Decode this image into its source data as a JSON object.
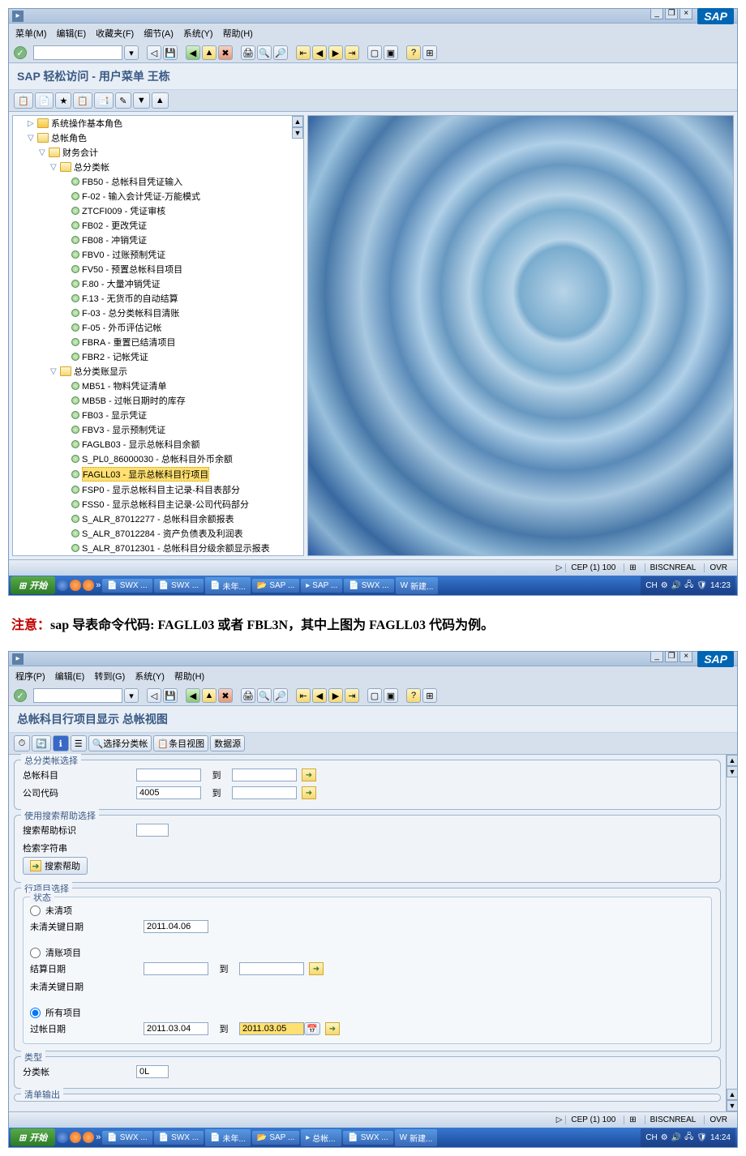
{
  "screenshot1": {
    "menu": {
      "m1": "菜单(M)",
      "m2": "编辑(E)",
      "m3": "收藏夹(F)",
      "m4": "细节(A)",
      "m5": "系统(Y)",
      "m6": "帮助(H)"
    },
    "title": "SAP 轻松访问 - 用户菜单 王栋",
    "tree": {
      "n1": "系统操作基本角色",
      "n2": "总帐角色",
      "n3": "财务会计",
      "n4": "总分类帐",
      "items": [
        "FB50 - 总帐科目凭证输入",
        "F-02 - 输入会计凭证-万能模式",
        "ZTCFI009 - 凭证审核",
        "FB02 - 更改凭证",
        "FB08 - 冲销凭证",
        "FBV0 - 过账预制凭证",
        "FV50 - 预置总帐科目项目",
        "F.80 - 大量冲销凭证",
        "F.13 - 无货币的自动结算",
        "F-03 - 总分类帐科目清账",
        "F-05 - 外币评估记帐",
        "FBRA - 重置已结清项目",
        "FBR2 - 记帐凭证"
      ],
      "n5": "总分类账显示",
      "items2": [
        "MB51 - 物料凭证清单",
        "MB5B - 过帐日期时的库存",
        "FB03 - 显示凭证",
        "FBV3 - 显示预制凭证",
        "FAGLB03 - 显示总帐科目余额",
        "S_PL0_86000030 - 总帐科目外币余额"
      ],
      "selected": "FAGLL03 - 显示总帐科目行项目",
      "items3": [
        "FSP0 - 显示总帐科目主记录-科目表部分",
        "FSS0 - 显示总帐科目主记录-公司代码部分",
        "S_ALR_87012277 - 总帐科目余额报表",
        "S_ALR_87012284 - 资产负债表及利润表",
        "S_ALR_87012301 - 总帐科目分级余额显示报表"
      ]
    },
    "status": {
      "s1": "CEP (1) 100",
      "s2": "BISCNREAL",
      "s3": "OVR"
    },
    "taskbar": {
      "start": "开始",
      "t1": "SWX ...",
      "t2": "SWX ...",
      "t3": "未年...",
      "t4": "SAP ...",
      "t5": "SAP ...",
      "t6": "SWX ...",
      "t7": "新建...",
      "tray": "CH",
      "time": "14:23"
    }
  },
  "note": {
    "prefix": "注意：",
    "text1": "sap 导表命令代码: ",
    "code1": "FAGLL03",
    "text2": " 或者 ",
    "code2": "FBL3N",
    "text3": "，其中上图为 ",
    "code3": "FAGLL03",
    "text4": " 代码为例。"
  },
  "screenshot2": {
    "menu": {
      "m1": "程序(P)",
      "m2": "编辑(E)",
      "m3": "转到(G)",
      "m4": "系统(Y)",
      "m5": "帮助(H)"
    },
    "title": "总帐科目行项目显示 总帐视图",
    "apptb": {
      "b1": "选择分类帐",
      "b2": "条目视图",
      "b3": "数据源"
    },
    "groups": {
      "g1": {
        "title": "总分类帐选择",
        "l1": "总帐科目",
        "l2": "公司代码",
        "to": "到",
        "v_company": "4005"
      },
      "g2": {
        "title": "使用搜索帮助选择",
        "l1": "搜索帮助标识",
        "l2": "检索字符串",
        "btn": "搜索帮助"
      },
      "g3": {
        "title": "行项目选择",
        "sub": "状态",
        "r1": "未清项",
        "l1": "未清关键日期",
        "v1": "2011.04.06",
        "r2": "清账项目",
        "l2": "结算日期",
        "l3": "未清关键日期",
        "to": "到",
        "r3": "所有项目",
        "l4": "过帐日期",
        "v4a": "2011.03.04",
        "v4b": "2011.03.05"
      },
      "g4": {
        "title": "类型",
        "l1": "分类帐",
        "v1": "0L"
      },
      "g5": {
        "title": "清单输出"
      }
    },
    "status": {
      "s1": "CEP (1) 100",
      "s2": "BISCNREAL",
      "s3": "OVR"
    },
    "taskbar": {
      "start": "开始",
      "t1": "SWX ...",
      "t2": "SWX ...",
      "t3": "未年...",
      "t4": "SAP ...",
      "t5": "总帐...",
      "t6": "SWX ...",
      "t7": "新建...",
      "tray": "CH",
      "time": "14:24"
    }
  }
}
